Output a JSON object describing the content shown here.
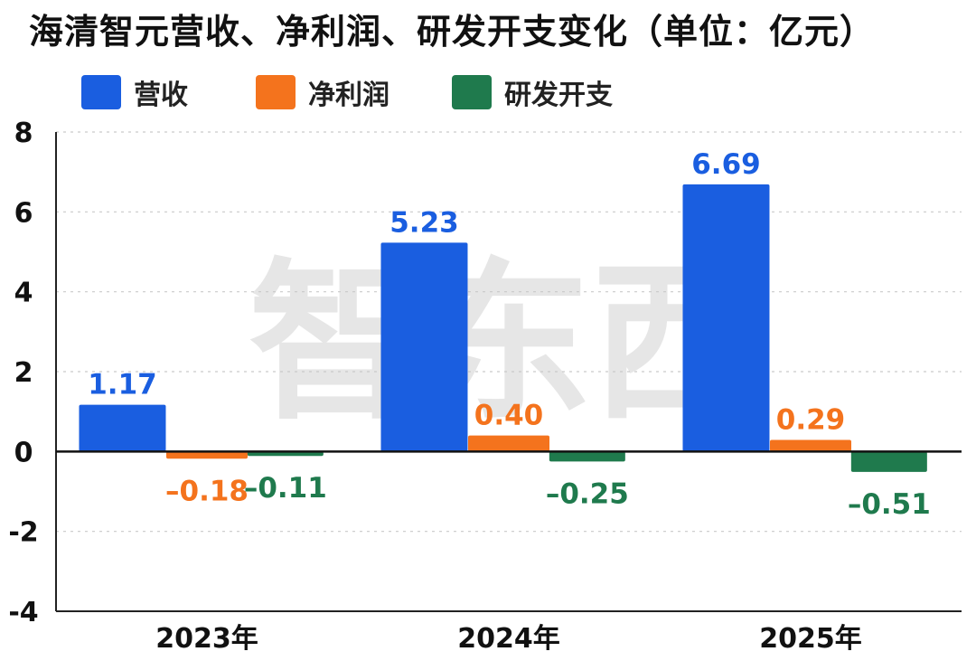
{
  "title": "海清智元营收、净利润、研发开支变化（单位：亿元）",
  "watermark": "智东西",
  "chart_data": {
    "type": "bar",
    "title": "海清智元营收、净利润、研发开支变化（单位：亿元）",
    "xlabel": "",
    "ylabel": "",
    "categories": [
      "2023年",
      "2024年",
      "2025年"
    ],
    "ylim": [
      -4,
      8
    ],
    "yticks": [
      "8",
      "6",
      "4",
      "2",
      "0",
      "-2",
      "-4"
    ],
    "grid": true,
    "legend_position": "top-left",
    "series": [
      {
        "name": "营收",
        "color": "#1a5ee0",
        "values": [
          1.17,
          5.23,
          6.69
        ],
        "labels": [
          "1.17",
          "5.23",
          "6.69"
        ]
      },
      {
        "name": "净利润",
        "color": "#f4731d",
        "values": [
          -0.18,
          0.4,
          0.29
        ],
        "labels": [
          "–0.18",
          "0.40",
          "0.29"
        ]
      },
      {
        "name": "研发开支",
        "color": "#1f7a4d",
        "values": [
          -0.11,
          -0.25,
          -0.51
        ],
        "labels": [
          "–0.11",
          "–0.25",
          "–0.51"
        ]
      }
    ]
  }
}
